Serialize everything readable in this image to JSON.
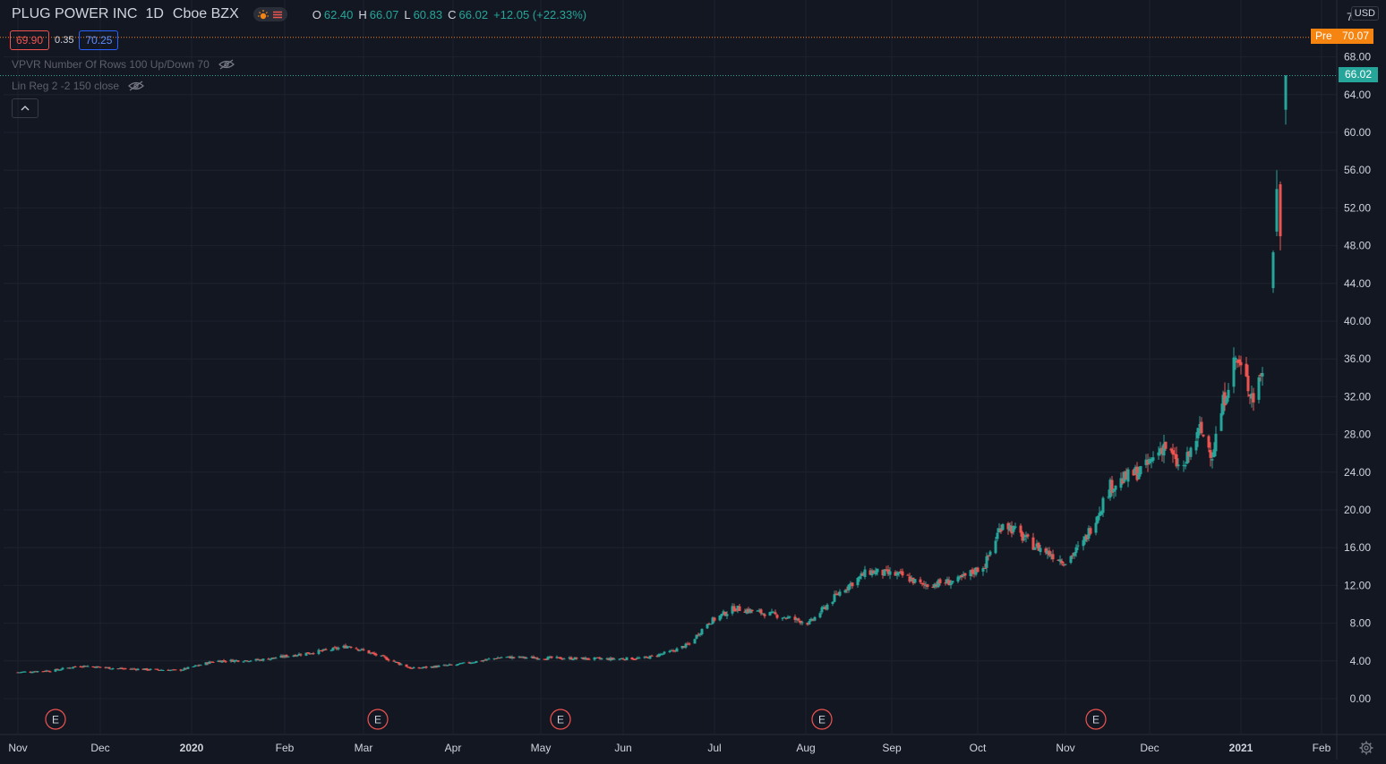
{
  "header": {
    "symbol": "PLUG POWER INC",
    "timeframe": "1D",
    "exchange": "Cboe BZX",
    "icons": [
      "sun-market-hours-icon",
      "menu-lines-icon"
    ],
    "ohlc": {
      "o_label": "O",
      "o_value": "62.40",
      "h_label": "H",
      "h_value": "66.07",
      "l_label": "L",
      "l_value": "60.83",
      "c_label": "C",
      "c_value": "66.02",
      "change": "+12.05 (+22.33%)"
    },
    "bid": "69.90",
    "spread": "0.35",
    "ask": "70.25"
  },
  "indicators": [
    {
      "label": "VPVR Number Of Rows 100 Up/Down 70",
      "icon": "eye-hidden-icon"
    },
    {
      "label": "Lin Reg 2 -2 150 close",
      "icon": "eye-hidden-icon"
    }
  ],
  "price_axis": {
    "currency": "USD",
    "top_cut_label": "7",
    "pre_label": "Pre",
    "pre_price": "70.07",
    "last_price": "66.02"
  },
  "colors": {
    "background": "#131722",
    "up": "#26a69a",
    "down": "#ef5350",
    "premarket": "#f68410",
    "grid": "#1e222d"
  },
  "chart_data": {
    "type": "candlestick",
    "title": "PLUG POWER INC",
    "timeframe": "1D",
    "ylim": [
      -2,
      74
    ],
    "y_ticks": [
      0,
      4,
      8,
      12,
      16,
      20,
      24,
      28,
      32,
      36,
      40,
      44,
      48,
      52,
      56,
      60,
      64,
      68
    ],
    "y_tick_labels": [
      "0.00",
      "4.00",
      "8.00",
      "12.00",
      "16.00",
      "20.00",
      "24.00",
      "28.00",
      "32.00",
      "36.00",
      "40.00",
      "44.00",
      "48.00",
      "52.00",
      "56.00",
      "60.00",
      "64.00",
      "68.00"
    ],
    "x_tick_labels": [
      "Nov",
      "Dec",
      "2020",
      "Feb",
      "Mar",
      "Apr",
      "May",
      "Jun",
      "Jul",
      "Aug",
      "Sep",
      "Oct",
      "Nov",
      "Dec",
      "2021",
      "Feb"
    ],
    "x_tick_days": [
      0,
      46,
      97,
      149,
      193,
      243,
      292,
      338,
      389,
      440,
      488,
      536,
      585,
      632,
      683,
      728
    ],
    "x_bold_ticks": [
      "2020",
      "2021"
    ],
    "earnings_markers": {
      "label": "E",
      "days": [
        21,
        201,
        303,
        449,
        602
      ]
    },
    "grid": true,
    "premarket_price": 70.07,
    "last_price": 66.02,
    "close_anchors": [
      {
        "day": 0,
        "close": 2.8
      },
      {
        "day": 20,
        "close": 3.0
      },
      {
        "day": 35,
        "close": 3.5
      },
      {
        "day": 55,
        "close": 3.2
      },
      {
        "day": 90,
        "close": 3.0
      },
      {
        "day": 110,
        "close": 4.0
      },
      {
        "day": 135,
        "close": 4.1
      },
      {
        "day": 175,
        "close": 5.2
      },
      {
        "day": 185,
        "close": 5.6
      },
      {
        "day": 205,
        "close": 4.3
      },
      {
        "day": 220,
        "close": 3.2
      },
      {
        "day": 245,
        "close": 3.6
      },
      {
        "day": 270,
        "close": 4.4
      },
      {
        "day": 300,
        "close": 4.3
      },
      {
        "day": 330,
        "close": 4.2
      },
      {
        "day": 350,
        "close": 4.3
      },
      {
        "day": 365,
        "close": 5.0
      },
      {
        "day": 375,
        "close": 5.8
      },
      {
        "day": 385,
        "close": 8.0
      },
      {
        "day": 400,
        "close": 9.6
      },
      {
        "day": 425,
        "close": 8.8
      },
      {
        "day": 442,
        "close": 8.0
      },
      {
        "day": 460,
        "close": 11.5
      },
      {
        "day": 475,
        "close": 13.5
      },
      {
        "day": 495,
        "close": 13.0
      },
      {
        "day": 505,
        "close": 12.0
      },
      {
        "day": 525,
        "close": 12.5
      },
      {
        "day": 540,
        "close": 14.2
      },
      {
        "day": 550,
        "close": 18.8
      },
      {
        "day": 565,
        "close": 16.5
      },
      {
        "day": 585,
        "close": 14.5
      },
      {
        "day": 595,
        "close": 16.5
      },
      {
        "day": 610,
        "close": 22.5
      },
      {
        "day": 630,
        "close": 24.5
      },
      {
        "day": 640,
        "close": 27.0
      },
      {
        "day": 650,
        "close": 24.0
      },
      {
        "day": 660,
        "close": 28.5
      },
      {
        "day": 667,
        "close": 26.0
      },
      {
        "day": 675,
        "close": 33.0
      },
      {
        "day": 680,
        "close": 36.0
      },
      {
        "day": 690,
        "close": 32.0
      },
      {
        "day": 695,
        "close": 35.0
      }
    ],
    "final_candles": [
      {
        "day": 701,
        "open": 43.5,
        "high": 47.5,
        "low": 43.0,
        "close": 47.3
      },
      {
        "day": 703,
        "open": 49.5,
        "high": 56.0,
        "low": 49.0,
        "close": 54.0
      },
      {
        "day": 705,
        "open": 54.5,
        "high": 54.8,
        "low": 47.5,
        "close": 49.0
      },
      {
        "day": 708,
        "open": 62.4,
        "high": 66.07,
        "low": 60.83,
        "close": 66.02
      }
    ]
  }
}
